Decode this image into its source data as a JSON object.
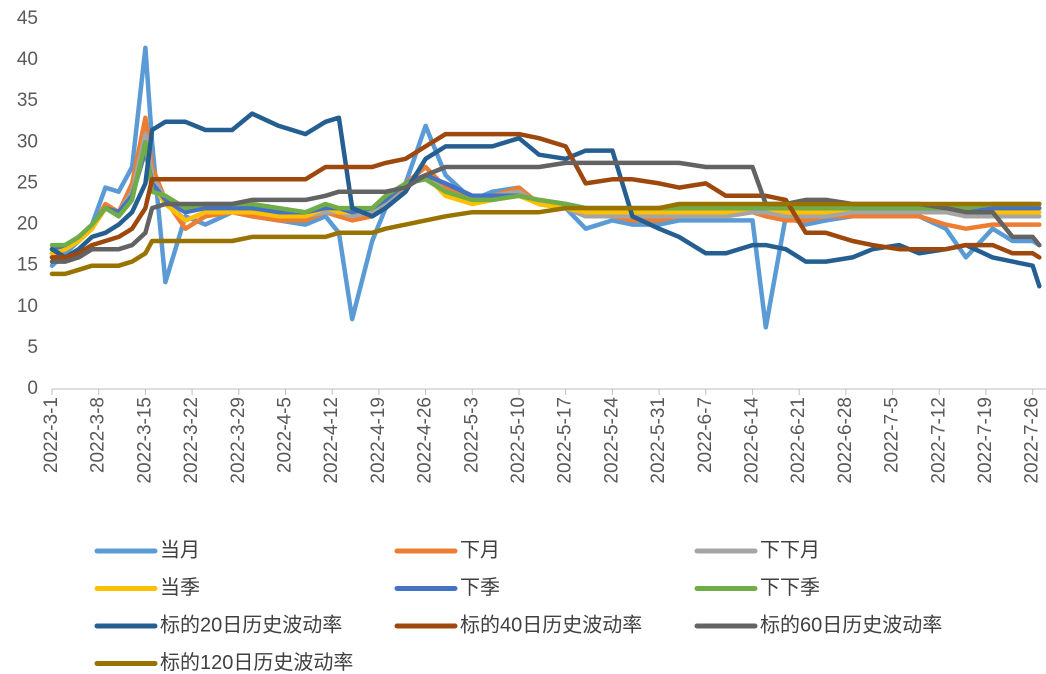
{
  "chart_data": {
    "type": "line",
    "x": [
      "2022-3-1",
      "2022-3-3",
      "2022-3-5",
      "2022-3-7",
      "2022-3-9",
      "2022-3-11",
      "2022-3-13",
      "2022-3-15",
      "2022-3-16",
      "2022-3-18",
      "2022-3-21",
      "2022-3-24",
      "2022-3-28",
      "2022-3-31",
      "2022-4-4",
      "2022-4-8",
      "2022-4-11",
      "2022-4-13",
      "2022-4-15",
      "2022-4-18",
      "2022-4-20",
      "2022-4-23",
      "2022-4-26",
      "2022-4-29",
      "2022-5-3",
      "2022-5-6",
      "2022-5-10",
      "2022-5-13",
      "2022-5-17",
      "2022-5-20",
      "2022-5-24",
      "2022-5-27",
      "2022-5-31",
      "2022-6-3",
      "2022-6-7",
      "2022-6-10",
      "2022-6-14",
      "2022-6-16",
      "2022-6-19",
      "2022-6-22",
      "2022-6-25",
      "2022-6-29",
      "2022-7-2",
      "2022-7-6",
      "2022-7-9",
      "2022-7-13",
      "2022-7-16",
      "2022-7-20",
      "2022-7-23",
      "2022-7-26",
      "2022-7-27"
    ],
    "xlim": [
      "2022-3-1",
      "2022-7-28"
    ],
    "xticks": [
      "2022-3-1",
      "2022-3-8",
      "2022-3-15",
      "2022-3-22",
      "2022-3-29",
      "2022-4-5",
      "2022-4-12",
      "2022-4-19",
      "2022-4-26",
      "2022-5-3",
      "2022-5-10",
      "2022-5-17",
      "2022-5-24",
      "2022-5-31",
      "2022-6-7",
      "2022-6-14",
      "2022-6-21",
      "2022-6-28",
      "2022-7-5",
      "2022-7-12",
      "2022-7-19",
      "2022-7-26"
    ],
    "ylim": [
      0,
      45
    ],
    "yticks": [
      0,
      5,
      10,
      15,
      20,
      25,
      30,
      35,
      40,
      45
    ],
    "grid": false,
    "legend": "bottom",
    "series": [
      {
        "name": "当月",
        "color": "#5b9bd5",
        "values": [
          15,
          16.5,
          18,
          20,
          24.5,
          24,
          27,
          41.5,
          30,
          13,
          21,
          20,
          21.5,
          21,
          20.5,
          20,
          21,
          19,
          8.5,
          18,
          22,
          25,
          32,
          26,
          23,
          24,
          24.5,
          22.5,
          22,
          19.5,
          20.5,
          20,
          20,
          20.5,
          20.5,
          20.5,
          20.5,
          7.5,
          21,
          20,
          20.5,
          21,
          21,
          21.5,
          21,
          19.5,
          16,
          19.5,
          18,
          18,
          17.5
        ]
      },
      {
        "name": "下月",
        "color": "#ed7d31",
        "values": [
          16,
          17,
          18,
          19.5,
          22.5,
          21.5,
          25,
          33,
          27,
          23,
          19.5,
          21,
          21.5,
          21,
          20.5,
          20.5,
          21.5,
          21,
          20.5,
          21,
          22,
          25,
          27,
          24.5,
          23,
          23.5,
          24.5,
          22.5,
          22,
          21,
          21,
          20.5,
          20.5,
          21,
          21,
          21,
          21.5,
          21,
          20.5,
          20.5,
          21,
          21,
          21,
          21,
          21,
          20,
          19.5,
          20,
          20,
          20,
          20
        ]
      },
      {
        "name": "下下月",
        "color": "#a5a5a5",
        "values": [
          16.5,
          17,
          18,
          19.5,
          22,
          21.5,
          24,
          31,
          26,
          23,
          20.5,
          21.5,
          21.5,
          21.5,
          21,
          21,
          21.5,
          21.5,
          21,
          21.5,
          22.5,
          25,
          26,
          24,
          23,
          23.5,
          24,
          22.5,
          22,
          21,
          21,
          21,
          21,
          21,
          21,
          21,
          21.5,
          21.5,
          21,
          21,
          21,
          21.5,
          21.5,
          21.5,
          21.5,
          21.5,
          21,
          21,
          21,
          21,
          21
        ]
      },
      {
        "name": "当季",
        "color": "#ffc000",
        "values": [
          16.5,
          17,
          18,
          19.5,
          22,
          21.5,
          23.5,
          29,
          25,
          22.5,
          20.5,
          21.5,
          21.5,
          21.5,
          21,
          21,
          22,
          21.5,
          21.5,
          22,
          23,
          25,
          26,
          23.5,
          22.5,
          23,
          23.5,
          22.5,
          22,
          21.5,
          21.5,
          21.5,
          21.5,
          21.5,
          21.5,
          21.5,
          22,
          22,
          21.5,
          21.5,
          21.5,
          22,
          22,
          22,
          22,
          22,
          21.5,
          21.5,
          21.5,
          21.5,
          21.5
        ]
      },
      {
        "name": "下季",
        "color": "#4472c4",
        "values": [
          17,
          17.5,
          18.5,
          20,
          22,
          21.5,
          23.5,
          29,
          25,
          23,
          21.5,
          22,
          22,
          22,
          21.5,
          21.5,
          22,
          22,
          21.5,
          22,
          23,
          25,
          26,
          25,
          23.5,
          23.5,
          23.5,
          23,
          22.5,
          22,
          22,
          22,
          22,
          22,
          22,
          22,
          22,
          22,
          22,
          22,
          22,
          22,
          22,
          22,
          22,
          22,
          22,
          22,
          22,
          22,
          22
        ]
      },
      {
        "name": "下下季",
        "color": "#70ad47",
        "values": [
          17.5,
          17.5,
          18.5,
          20,
          22,
          21,
          23,
          30,
          24,
          23.5,
          22,
          22.5,
          22.5,
          22.5,
          22,
          21.5,
          22.5,
          22,
          22,
          22,
          23.5,
          25,
          25.5,
          24,
          23,
          23,
          23.5,
          23,
          22.5,
          22,
          22,
          22,
          22,
          22,
          22,
          22,
          22,
          22,
          22,
          22,
          22,
          22,
          22,
          22,
          22,
          22,
          22,
          22.5,
          22.5,
          22.5,
          22.5
        ]
      },
      {
        "name": "标的20日历史波动率",
        "color": "#255e91",
        "values": [
          17,
          16,
          17,
          18.5,
          19,
          20,
          21.5,
          25,
          31.5,
          32.5,
          32.5,
          31.5,
          31.5,
          33.5,
          32,
          31,
          32.5,
          33,
          22,
          21,
          22,
          24,
          28,
          29.5,
          29.5,
          29.5,
          30.5,
          28.5,
          28,
          29,
          29,
          21,
          19.5,
          18.5,
          16.5,
          16.5,
          17.5,
          17.5,
          17,
          15.5,
          15.5,
          16,
          17,
          17.5,
          16.5,
          17,
          17.5,
          16,
          15.5,
          15,
          12.5
        ]
      },
      {
        "name": "标的40日历史波动率",
        "color": "#9e480e",
        "values": [
          16,
          16,
          16.5,
          17.5,
          18,
          18.5,
          19.5,
          22,
          25.5,
          25.5,
          25.5,
          25.5,
          25.5,
          25.5,
          25.5,
          25.5,
          27,
          27,
          27,
          27,
          27.5,
          28,
          29.5,
          31,
          31,
          31,
          31,
          30.5,
          29.5,
          25,
          25.5,
          25.5,
          25,
          24.5,
          25,
          23.5,
          23.5,
          23.5,
          23,
          19,
          19,
          18,
          17.5,
          17,
          17,
          17,
          17.5,
          17.5,
          16.5,
          16.5,
          16
        ]
      },
      {
        "name": "标的60日历史波动率",
        "color": "#636363",
        "values": [
          15.5,
          15.5,
          16,
          17,
          17,
          17,
          17.5,
          19,
          22,
          22.5,
          22.5,
          22.5,
          22.5,
          23,
          23,
          23,
          23.5,
          24,
          24,
          24,
          24,
          24.5,
          26,
          27,
          27,
          27,
          27,
          27,
          27.5,
          27.5,
          27.5,
          27.5,
          27.5,
          27.5,
          27,
          27,
          27,
          22.5,
          22.5,
          23,
          23,
          22.5,
          22.5,
          22.5,
          22.5,
          22,
          21.5,
          21.5,
          18.5,
          18.5,
          17.5
        ]
      },
      {
        "name": "标的120日历史波动率",
        "color": "#997300",
        "values": [
          14,
          14,
          14.5,
          15,
          15,
          15,
          15.5,
          16.5,
          18,
          18,
          18,
          18,
          18,
          18.5,
          18.5,
          18.5,
          18.5,
          19,
          19,
          19,
          19.5,
          20,
          20.5,
          21,
          21.5,
          21.5,
          21.5,
          21.5,
          22,
          22,
          22,
          22,
          22,
          22.5,
          22.5,
          22.5,
          22.5,
          22.5,
          22.5,
          22.5,
          22.5,
          22.5,
          22.5,
          22.5,
          22.5,
          22.5,
          22.5,
          22.5,
          22.5,
          22.5,
          22.5
        ]
      }
    ]
  }
}
